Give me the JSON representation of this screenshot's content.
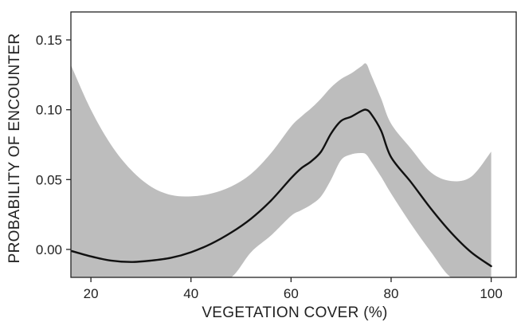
{
  "chart_data": {
    "type": "line",
    "title": "",
    "xlabel": "VEGETATION COVER (%)",
    "ylabel": "PROBABILITY OF ENCOUNTER",
    "xlim": [
      16,
      105
    ],
    "ylim": [
      -0.02,
      0.17
    ],
    "xticks": [
      20,
      40,
      60,
      80,
      100
    ],
    "yticks": [
      0.0,
      0.05,
      0.1,
      0.15
    ],
    "xtick_labels": [
      "20",
      "40",
      "60",
      "80",
      "100"
    ],
    "ytick_labels": [
      "0.00",
      "0.05",
      "0.10",
      "0.15"
    ],
    "grid": false,
    "legend": "none",
    "colors": {
      "line": "#111111",
      "band": "#bdbdbd",
      "axis": "#222222"
    },
    "series": [
      {
        "x": [
          16,
          20,
          24,
          28,
          32,
          36,
          40,
          44,
          48,
          52,
          56,
          60,
          62,
          64,
          66,
          68,
          70,
          72,
          74,
          75,
          76,
          78,
          80,
          84,
          88,
          92,
          96,
          100
        ],
        "y": [
          -0.001,
          -0.005,
          -0.008,
          -0.009,
          -0.008,
          -0.006,
          -0.002,
          0.004,
          0.012,
          0.022,
          0.035,
          0.051,
          0.058,
          0.063,
          0.07,
          0.083,
          0.092,
          0.095,
          0.099,
          0.1,
          0.097,
          0.085,
          0.066,
          0.048,
          0.029,
          0.012,
          -0.002,
          -0.012
        ]
      }
    ],
    "band": {
      "x": [
        16,
        20,
        24,
        28,
        32,
        36,
        40,
        44,
        48,
        52,
        56,
        60,
        62,
        64,
        66,
        68,
        70,
        72,
        74,
        75,
        76,
        78,
        80,
        84,
        88,
        92,
        96,
        100
      ],
      "upper": [
        0.132,
        0.1,
        0.075,
        0.057,
        0.045,
        0.039,
        0.038,
        0.04,
        0.045,
        0.054,
        0.069,
        0.088,
        0.095,
        0.101,
        0.108,
        0.116,
        0.122,
        0.126,
        0.131,
        0.133,
        0.125,
        0.108,
        0.09,
        0.072,
        0.055,
        0.049,
        0.052,
        0.07
      ],
      "lower": [
        -0.02,
        -0.02,
        -0.02,
        -0.02,
        -0.02,
        -0.02,
        -0.02,
        -0.02,
        -0.02,
        -0.002,
        0.01,
        0.024,
        0.028,
        0.032,
        0.038,
        0.05,
        0.064,
        0.068,
        0.069,
        0.068,
        0.063,
        0.052,
        0.04,
        0.018,
        -0.002,
        -0.02,
        -0.02,
        -0.02
      ]
    }
  }
}
